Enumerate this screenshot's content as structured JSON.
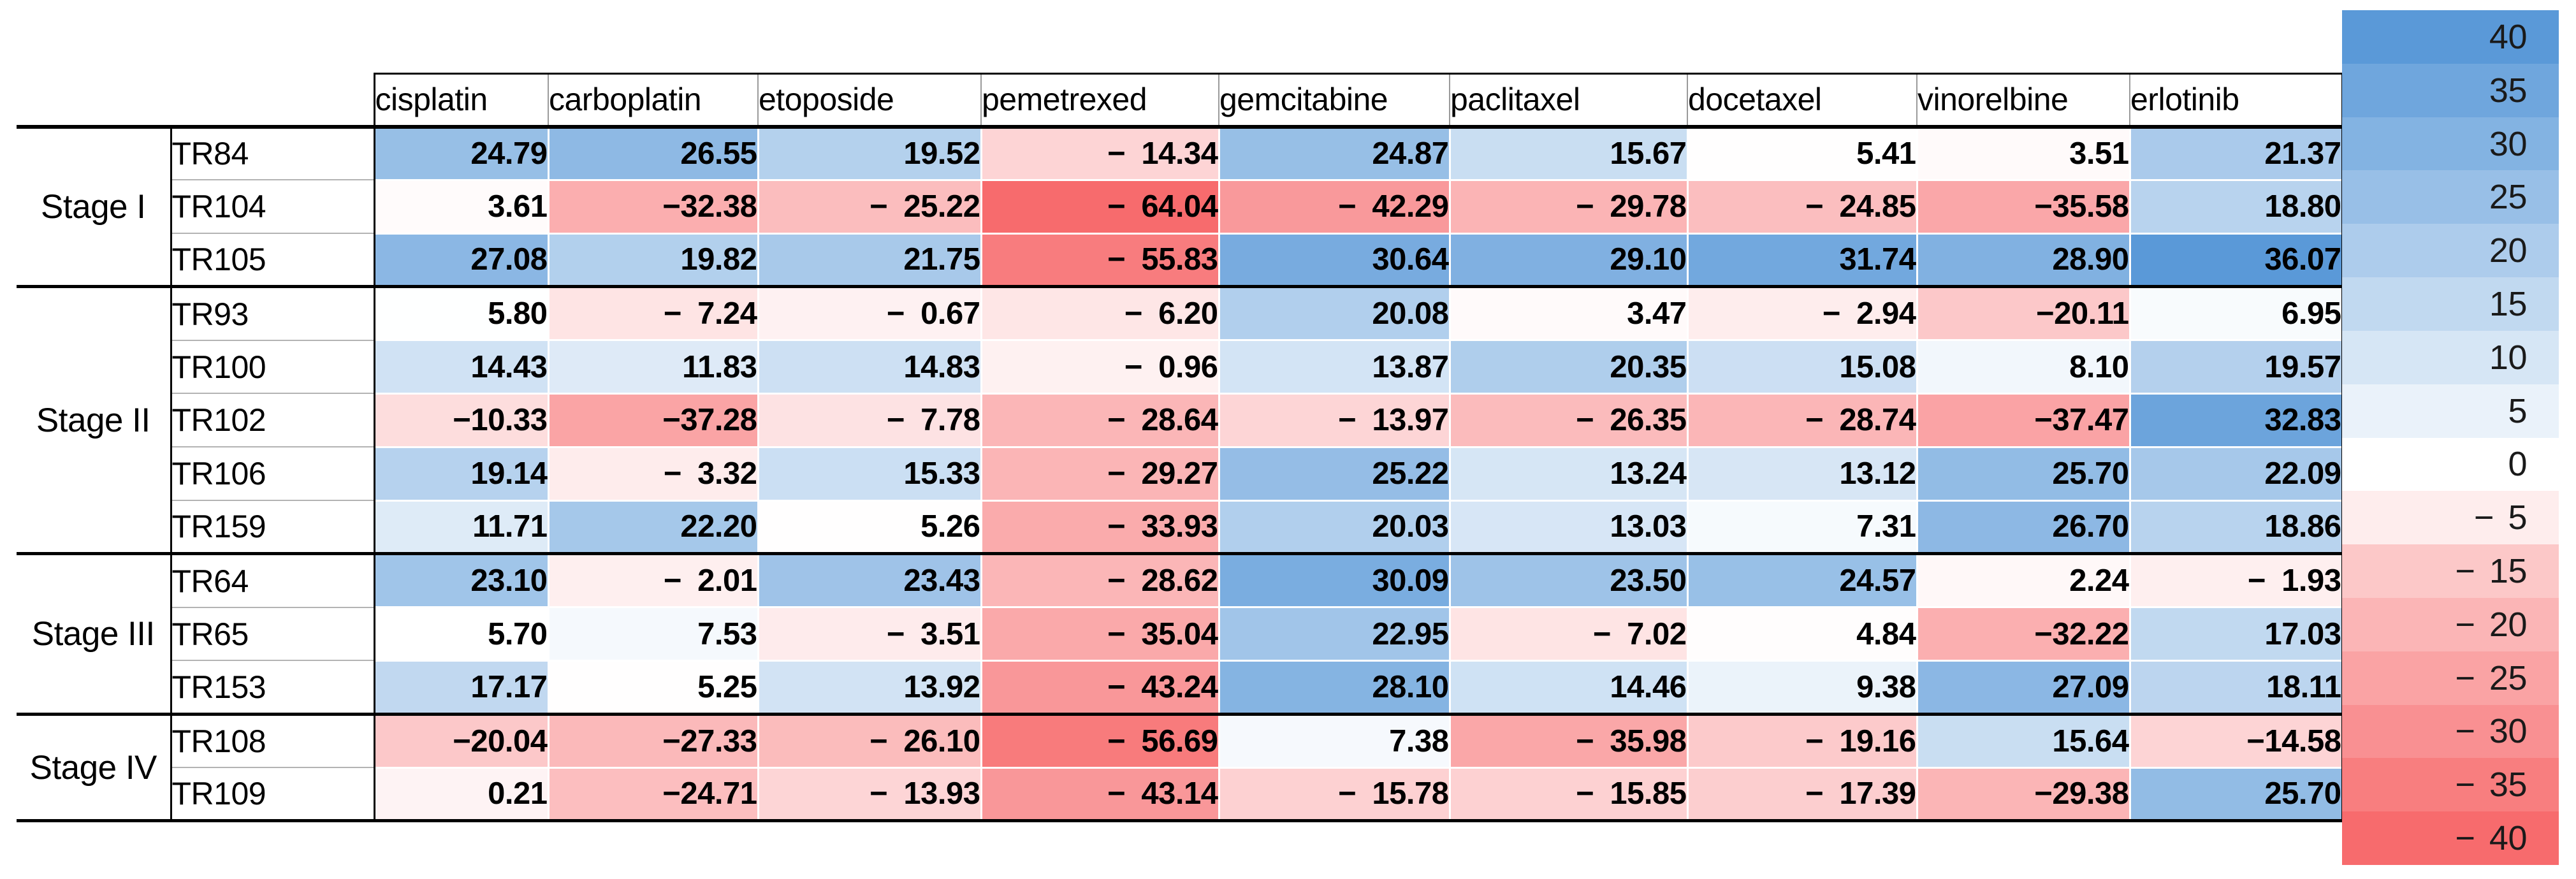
{
  "columns": [
    "cisplatin",
    "carboplatin",
    "etoposide",
    "pemetrexed",
    "gemcitabine",
    "paclitaxel",
    "docetaxel",
    "vinorelbine",
    "erlotinib"
  ],
  "groups": [
    {
      "stage": "Stage I",
      "samples": [
        {
          "id": "TR84",
          "display": [
            "24.79",
            "26.55",
            "19.52",
            "− 14.34",
            "24.87",
            "15.67",
            "5.41",
            "3.51",
            "21.37"
          ]
        },
        {
          "id": "TR104",
          "display": [
            "3.61",
            "−32.38",
            "− 25.22",
            "− 64.04",
            "− 42.29",
            "− 29.78",
            "− 24.85",
            "−35.58",
            "18.80"
          ]
        },
        {
          "id": "TR105",
          "display": [
            "27.08",
            "19.82",
            "21.75",
            "− 55.83",
            "30.64",
            "29.10",
            "31.74",
            "28.90",
            "36.07"
          ]
        }
      ]
    },
    {
      "stage": "Stage II",
      "samples": [
        {
          "id": "TR93",
          "display": [
            "5.80",
            "− 7.24",
            "− 0.67",
            "− 6.20",
            "20.08",
            "3.47",
            "− 2.94",
            "−20.11",
            "6.95"
          ]
        },
        {
          "id": "TR100",
          "display": [
            "14.43",
            "11.83",
            "14.83",
            "− 0.96",
            "13.87",
            "20.35",
            "15.08",
            "8.10",
            "19.57"
          ]
        },
        {
          "id": "TR102",
          "display": [
            "−10.33",
            "−37.28",
            "− 7.78",
            "− 28.64",
            "− 13.97",
            "− 26.35",
            "− 28.74",
            "−37.47",
            "32.83"
          ]
        },
        {
          "id": "TR106",
          "display": [
            "19.14",
            "− 3.32",
            "15.33",
            "− 29.27",
            "25.22",
            "13.24",
            "13.12",
            "25.70",
            "22.09"
          ]
        },
        {
          "id": "TR159",
          "display": [
            "11.71",
            "22.20",
            "5.26",
            "− 33.93",
            "20.03",
            "13.03",
            "7.31",
            "26.70",
            "18.86"
          ]
        }
      ]
    },
    {
      "stage": "Stage III",
      "samples": [
        {
          "id": "TR64",
          "display": [
            "23.10",
            "− 2.01",
            "23.43",
            "− 28.62",
            "30.09",
            "23.50",
            "24.57",
            "2.24",
            "− 1.93"
          ]
        },
        {
          "id": "TR65",
          "display": [
            "5.70",
            "7.53",
            "− 3.51",
            "− 35.04",
            "22.95",
            "− 7.02",
            "4.84",
            "−32.22",
            "17.03"
          ]
        },
        {
          "id": "TR153",
          "display": [
            "17.17",
            "5.25",
            "13.92",
            "− 43.24",
            "28.10",
            "14.46",
            "9.38",
            "27.09",
            "18.11"
          ]
        }
      ]
    },
    {
      "stage": "Stage IV",
      "samples": [
        {
          "id": "TR108",
          "display": [
            "−20.04",
            "−27.33",
            "− 26.10",
            "− 56.69",
            "7.38",
            "− 35.98",
            "− 19.16",
            "15.64",
            "−14.58"
          ]
        },
        {
          "id": "TR109",
          "display": [
            "0.21",
            "−24.71",
            "− 13.93",
            "− 43.14",
            "− 15.78",
            "− 15.85",
            "− 17.39",
            "−29.38",
            "25.70"
          ]
        }
      ]
    }
  ],
  "legend": {
    "ticks": [
      {
        "label": "40",
        "value": 40
      },
      {
        "label": "35",
        "value": 35
      },
      {
        "label": "30",
        "value": 30
      },
      {
        "label": "25",
        "value": 25
      },
      {
        "label": "20",
        "value": 20
      },
      {
        "label": "15",
        "value": 15
      },
      {
        "label": "10",
        "value": 10
      },
      {
        "label": "5",
        "value": 5
      },
      {
        "label": "0",
        "value": 0
      },
      {
        "label": "− 5",
        "value": -5
      },
      {
        "label": "− 15",
        "value": -15
      },
      {
        "label": "− 20",
        "value": -20
      },
      {
        "label": "− 25",
        "value": -25
      },
      {
        "label": "− 30",
        "value": -30
      },
      {
        "label": "− 35",
        "value": -35
      },
      {
        "label": "− 40",
        "value": -40
      }
    ]
  },
  "colors": {
    "positive_max_blue": "#5a99d8",
    "negative_min_red": "#f76b6d",
    "neutral_white": "#ffffff",
    "border_black": "#000000",
    "thin_row_line": "#b3b3b3",
    "header_separator": "#9a9a9a",
    "cell_scale": {
      "min": -64.04,
      "white_point": 5.7,
      "max": 36.07
    },
    "legend_scale": {
      "min": -40,
      "max": 40
    }
  },
  "chart_data": {
    "type": "heatmap",
    "title": "",
    "xlabel": "",
    "ylabel": "",
    "columns": [
      "cisplatin",
      "carboplatin",
      "etoposide",
      "pemetrexed",
      "gemcitabine",
      "paclitaxel",
      "docetaxel",
      "vinorelbine",
      "erlotinib"
    ],
    "rows": [
      "TR84",
      "TR104",
      "TR105",
      "TR93",
      "TR100",
      "TR102",
      "TR106",
      "TR159",
      "TR64",
      "TR65",
      "TR153",
      "TR108",
      "TR109"
    ],
    "row_groups": [
      {
        "label": "Stage I",
        "rows": [
          "TR84",
          "TR104",
          "TR105"
        ]
      },
      {
        "label": "Stage II",
        "rows": [
          "TR93",
          "TR100",
          "TR102",
          "TR106",
          "TR159"
        ]
      },
      {
        "label": "Stage III",
        "rows": [
          "TR64",
          "TR65",
          "TR153"
        ]
      },
      {
        "label": "Stage IV",
        "rows": [
          "TR108",
          "TR109"
        ]
      }
    ],
    "values": [
      [
        24.79,
        26.55,
        19.52,
        -14.34,
        24.87,
        15.67,
        5.41,
        3.51,
        21.37
      ],
      [
        3.61,
        -32.38,
        -25.22,
        -64.04,
        -42.29,
        -29.78,
        -24.85,
        -35.58,
        18.8
      ],
      [
        27.08,
        19.82,
        21.75,
        -55.83,
        30.64,
        29.1,
        31.74,
        28.9,
        36.07
      ],
      [
        5.8,
        -7.24,
        -0.67,
        -6.2,
        20.08,
        3.47,
        -2.94,
        -20.11,
        6.95
      ],
      [
        14.43,
        11.83,
        14.83,
        -0.96,
        13.87,
        20.35,
        15.08,
        8.1,
        19.57
      ],
      [
        -10.33,
        -37.28,
        -7.78,
        -28.64,
        -13.97,
        -26.35,
        -28.74,
        -37.47,
        32.83
      ],
      [
        19.14,
        -3.32,
        15.33,
        -29.27,
        25.22,
        13.24,
        13.12,
        25.7,
        22.09
      ],
      [
        11.71,
        22.2,
        5.26,
        -33.93,
        20.03,
        13.03,
        7.31,
        26.7,
        18.86
      ],
      [
        23.1,
        -2.01,
        23.43,
        -28.62,
        30.09,
        23.5,
        24.57,
        2.24,
        -1.93
      ],
      [
        5.7,
        7.53,
        -3.51,
        -35.04,
        22.95,
        -7.02,
        4.84,
        -32.22,
        17.03
      ],
      [
        17.17,
        5.25,
        13.92,
        -43.24,
        28.1,
        14.46,
        9.38,
        27.09,
        18.11
      ],
      [
        -20.04,
        -27.33,
        -26.1,
        -56.69,
        7.38,
        -35.98,
        -19.16,
        15.64,
        -14.58
      ],
      [
        0.21,
        -24.71,
        -13.93,
        -43.14,
        -15.78,
        -15.85,
        -17.39,
        -29.38,
        25.7
      ]
    ],
    "colorscale": {
      "legend_ticks": [
        40,
        35,
        30,
        25,
        20,
        15,
        10,
        5,
        0,
        -5,
        -15,
        -20,
        -25,
        -30,
        -35,
        -40
      ],
      "legend_min": -40,
      "legend_max": 40,
      "cell_min": -64.04,
      "cell_white_point": 5.7,
      "cell_max": 36.07,
      "positive_color": "#5a99d8",
      "negative_color": "#f76b6d",
      "neutral_color": "#ffffff"
    },
    "legend_position": "right",
    "grid": true
  }
}
